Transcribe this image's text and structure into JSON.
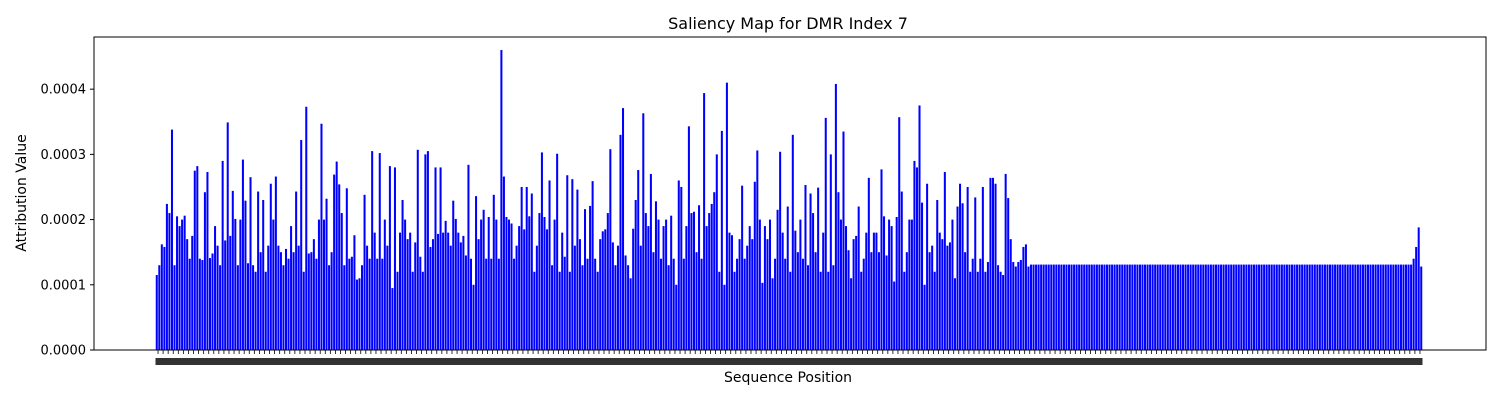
{
  "chart_data": {
    "type": "bar",
    "title": "Saliency Map for DMR Index 7",
    "xlabel": "Sequence Position",
    "ylabel": "Attribution Value",
    "ylim": [
      0,
      0.00048
    ],
    "yticks": [
      0.0,
      0.0001,
      0.0002,
      0.0003,
      0.0004
    ],
    "ytick_labels": [
      "0.0000",
      "0.0001",
      "0.0002",
      "0.0003",
      "0.0004"
    ],
    "x_range": [
      0,
      500
    ],
    "grid": false,
    "bar_color": "#0000ff",
    "plateau_value": 0.000131,
    "series": [
      {
        "values": [
          0.000115,
          0.00013,
          0.000162,
          0.000158,
          0.000224,
          0.00021,
          0.000338,
          0.00013,
          0.000205,
          0.00019,
          0.0002,
          0.000206,
          0.00017,
          0.00014,
          0.000175,
          0.000275,
          0.000282,
          0.00014,
          0.000138,
          0.000242,
          0.000273,
          0.000141,
          0.000148,
          0.00019,
          0.00016,
          0.00013,
          0.00029,
          0.000168,
          0.000349,
          0.000175,
          0.000244,
          0.000201,
          0.00013,
          0.0002,
          0.000292,
          0.000229,
          0.000133,
          0.000265,
          0.00013,
          0.00012,
          0.000243,
          0.00015,
          0.00023,
          0.00012,
          0.00016,
          0.000255,
          0.0002,
          0.000266,
          0.00016,
          0.00015,
          0.00013,
          0.000155,
          0.00014,
          0.00019,
          0.00015,
          0.000243,
          0.00016,
          0.000322,
          0.00012,
          0.000373,
          0.000148,
          0.00015,
          0.00017,
          0.00014,
          0.0002,
          0.000347,
          0.0002,
          0.000232,
          0.00013,
          0.00015,
          0.000269,
          0.000289,
          0.000254,
          0.00021,
          0.00013,
          0.000248,
          0.00014,
          0.000143,
          0.000176,
          0.000108,
          0.00011,
          0.00013,
          0.000238,
          0.00016,
          0.00014,
          0.000305,
          0.00018,
          0.00014,
          0.000302,
          0.00014,
          0.0002,
          0.00016,
          0.000282,
          9.5e-05,
          0.00028,
          0.00012,
          0.00018,
          0.00023,
          0.0002,
          0.00017,
          0.00018,
          0.00012,
          0.000165,
          0.000307,
          0.000143,
          0.00012,
          0.0003,
          0.000305,
          0.000158,
          0.00017,
          0.00028,
          0.000178,
          0.00028,
          0.00018,
          0.000198,
          0.00018,
          0.00016,
          0.000229,
          0.000201,
          0.00018,
          0.000165,
          0.000175,
          0.000145,
          0.000284,
          0.00014,
          0.0001,
          0.000236,
          0.00017,
          0.0002,
          0.000215,
          0.00014,
          0.000204,
          0.00014,
          0.000238,
          0.0002,
          0.00014,
          0.00046,
          0.000266,
          0.000204,
          0.0002,
          0.000194,
          0.00014,
          0.00016,
          0.00019,
          0.00025,
          0.000185,
          0.00025,
          0.000205,
          0.00024,
          0.00012,
          0.00016,
          0.00021,
          0.000303,
          0.000204,
          0.000185,
          0.00026,
          0.00013,
          0.0002,
          0.000301,
          0.00012,
          0.00018,
          0.000143,
          0.000268,
          0.00012,
          0.000262,
          0.00016,
          0.000246,
          0.00017,
          0.00013,
          0.000216,
          0.00014,
          0.000221,
          0.000259,
          0.00014,
          0.00012,
          0.00017,
          0.000182,
          0.000185,
          0.00021,
          0.000308,
          0.000165,
          0.00013,
          0.00016,
          0.00033,
          0.000371,
          0.000145,
          0.00013,
          0.00011,
          0.000186,
          0.00023,
          0.000276,
          0.00016,
          0.000363,
          0.00021,
          0.00019,
          0.00027,
          0.00015,
          0.000228,
          0.0002,
          0.00014,
          0.00019,
          0.0002,
          0.00013,
          0.000206,
          0.00014,
          0.0001,
          0.00026,
          0.00025,
          0.00014,
          0.00019,
          0.000343,
          0.00021,
          0.000212,
          0.00015,
          0.000222,
          0.00014,
          0.000394,
          0.00019,
          0.00021,
          0.000224,
          0.000242,
          0.0003,
          0.00012,
          0.000336,
          0.0001,
          0.00041,
          0.00018,
          0.000176,
          0.00012,
          0.00014,
          0.00017,
          0.000252,
          0.00014,
          0.00016,
          0.00019,
          0.00017,
          0.000258,
          0.000306,
          0.0002,
          0.000103,
          0.00019,
          0.00017,
          0.0002,
          0.00011,
          0.00014,
          0.000215,
          0.000304,
          0.00018,
          0.00014,
          0.00022,
          0.00012,
          0.00033,
          0.000183,
          0.00015,
          0.0002,
          0.00014,
          0.000253,
          0.00013,
          0.00024,
          0.00021,
          0.00015,
          0.000249,
          0.00012,
          0.00018,
          0.000356,
          0.00012,
          0.0003,
          0.00013,
          0.000408,
          0.000242,
          0.0002,
          0.000335,
          0.00019,
          0.000153,
          0.00011,
          0.00017,
          0.000175,
          0.00022,
          0.00012,
          0.00014,
          0.00018,
          0.000264,
          0.00015,
          0.00018,
          0.00018,
          0.00015,
          0.000277,
          0.000205,
          0.000145,
          0.0002,
          0.00019,
          0.000105,
          0.000204,
          0.000357,
          0.000243,
          0.00012,
          0.00015,
          0.0002,
          0.0002,
          0.00029,
          0.00028,
          0.000375,
          0.000226,
          0.0001,
          0.000255,
          0.00015,
          0.00016,
          0.00012,
          0.00023,
          0.00018,
          0.00017,
          0.000273,
          0.00016,
          0.000165,
          0.0002,
          0.00011,
          0.00022,
          0.000255,
          0.000225,
          0.00015,
          0.00025,
          0.00012,
          0.00014,
          0.000234,
          0.00012,
          0.00014,
          0.00025,
          0.00012,
          0.000135,
          0.000264,
          0.000264,
          0.000255,
          0.00013,
          0.00012,
          0.000115,
          0.00027,
          0.000233,
          0.00017,
          0.000135,
          0.000128,
          0.000135,
          0.000138,
          0.000158,
          0.000162,
          0.000128
        ]
      }
    ],
    "tail_values": [
      0.00014,
      0.000158,
      0.000188,
      0.000128
    ]
  }
}
